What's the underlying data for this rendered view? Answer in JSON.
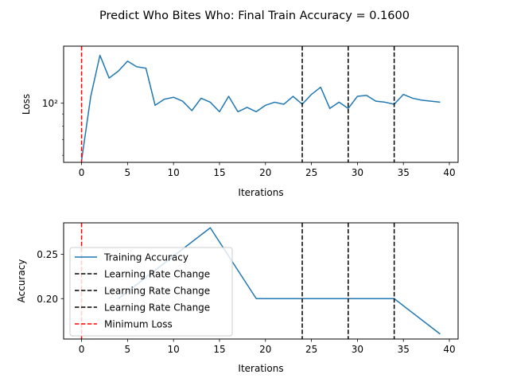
{
  "figure": {
    "title": "Predict Who Bites Who: Final Train Accuracy = 0.1600"
  },
  "colors": {
    "series": "#1f77b4",
    "lr_change": "#000000",
    "min_loss": "#ff0000",
    "axes": "#000000",
    "background": "#ffffff"
  },
  "chart_data": [
    {
      "type": "line",
      "xlabel": "Iterations",
      "ylabel": "Loss",
      "yscale": "log",
      "xlim": [
        -1.95,
        40.95
      ],
      "ylim": [
        56,
        175
      ],
      "xticks": [
        0,
        5,
        10,
        15,
        20,
        25,
        30,
        35,
        40
      ],
      "xtick_labels": [
        "0",
        "5",
        "10",
        "15",
        "20",
        "25",
        "30",
        "35",
        "40"
      ],
      "yticks": [
        100
      ],
      "ytick_labels": [
        "10²"
      ],
      "grid": false,
      "series": [
        {
          "x": [
            0,
            1,
            2,
            3,
            4,
            5,
            6,
            7,
            8,
            9,
            10,
            11,
            12,
            13,
            14,
            15,
            16,
            17,
            18,
            19,
            20,
            21,
            22,
            23,
            24,
            25,
            26,
            27,
            28,
            29,
            30,
            31,
            32,
            33,
            34,
            35,
            36,
            37,
            38,
            39
          ],
          "values": [
            57,
            107,
            160,
            128,
            137,
            151,
            143,
            141,
            98,
            104,
            106,
            102,
            93,
            105,
            101,
            92,
            107,
            92,
            96,
            92,
            98,
            101,
            99,
            107,
            99,
            109,
            117,
            95,
            101,
            95,
            107,
            108,
            102,
            101,
            99,
            109,
            105,
            103,
            102,
            101
          ]
        }
      ],
      "vlines": [
        {
          "x": 24,
          "style": "dashed",
          "color": "#000000"
        },
        {
          "x": 29,
          "style": "dashed",
          "color": "#000000"
        },
        {
          "x": 34,
          "style": "dashed",
          "color": "#000000"
        },
        {
          "x": 0,
          "style": "dashed",
          "color": "#ff0000"
        }
      ]
    },
    {
      "type": "line",
      "xlabel": "Iterations",
      "ylabel": "Accuracy",
      "xlim": [
        -1.95,
        40.95
      ],
      "ylim": [
        0.1544,
        0.2856
      ],
      "xticks": [
        0,
        5,
        10,
        15,
        20,
        25,
        30,
        35,
        40
      ],
      "xtick_labels": [
        "0",
        "5",
        "10",
        "15",
        "20",
        "25",
        "30",
        "35",
        "40"
      ],
      "yticks": [
        0.2,
        0.25
      ],
      "ytick_labels": [
        "0.20",
        "0.25"
      ],
      "grid": false,
      "legend_position": "center-left",
      "series": [
        {
          "name": "Training Accuracy",
          "x": [
            4,
            9,
            14,
            19,
            24,
            29,
            34,
            39
          ],
          "values": [
            0.2,
            0.24,
            0.28,
            0.2,
            0.2,
            0.2,
            0.2,
            0.16
          ]
        }
      ],
      "vlines": [
        {
          "x": 24,
          "style": "dashed",
          "color": "#000000"
        },
        {
          "x": 29,
          "style": "dashed",
          "color": "#000000"
        },
        {
          "x": 34,
          "style": "dashed",
          "color": "#000000"
        },
        {
          "x": 0,
          "style": "dashed",
          "color": "#ff0000"
        }
      ],
      "legend": [
        {
          "label": "Training Accuracy",
          "style": "solid",
          "color": "#1f77b4"
        },
        {
          "label": "Learning Rate Change",
          "style": "dashed",
          "color": "#000000"
        },
        {
          "label": "Learning Rate Change",
          "style": "dashed",
          "color": "#000000"
        },
        {
          "label": "Learning Rate Change",
          "style": "dashed",
          "color": "#000000"
        },
        {
          "label": "Minimum Loss",
          "style": "dashed",
          "color": "#ff0000"
        }
      ]
    }
  ]
}
